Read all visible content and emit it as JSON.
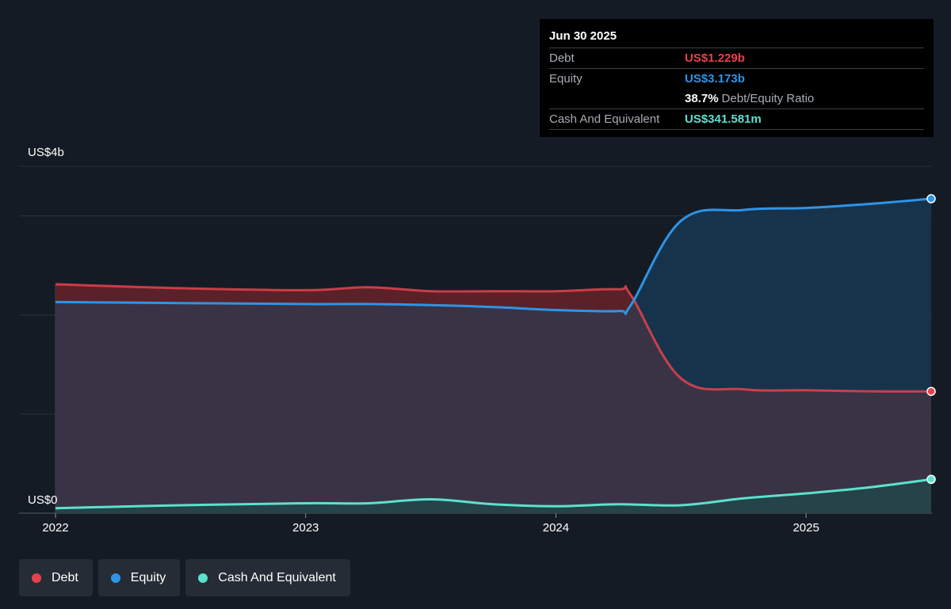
{
  "tooltip": {
    "date": "Jun 30 2025",
    "rows": [
      {
        "label": "Debt",
        "value": "US$1.229b",
        "color": "#e5424d"
      },
      {
        "label": "Equity",
        "value": "US$3.173b",
        "color": "#2e94e6"
      }
    ],
    "ratio_pct": "38.7%",
    "ratio_label": "Debt/Equity Ratio",
    "cash": {
      "label": "Cash And Equivalent",
      "value": "US$341.581m",
      "color": "#5ce1cf"
    }
  },
  "legend": [
    {
      "label": "Debt",
      "color": "#e5424d"
    },
    {
      "label": "Equity",
      "color": "#2e94e6"
    },
    {
      "label": "Cash And Equivalent",
      "color": "#5ce1cf"
    }
  ],
  "chart_data": {
    "type": "area",
    "y_top_label": "US$4b",
    "y_bottom_label": "US$0",
    "ylim": [
      0,
      3.5
    ],
    "xlim": [
      2022.0,
      2025.5
    ],
    "x_ticks": [
      {
        "value": 2022.0,
        "label": "2022"
      },
      {
        "value": 2023.0,
        "label": "2023"
      },
      {
        "value": 2024.0,
        "label": "2024"
      },
      {
        "value": 2025.0,
        "label": "2025"
      }
    ],
    "grid": true,
    "series": [
      {
        "name": "Debt",
        "color": "#e5424d",
        "x": [
          2022.0,
          2022.5,
          2023.0,
          2023.25,
          2023.5,
          2023.75,
          2024.0,
          2024.25,
          2024.3,
          2024.5,
          2024.75,
          2025.0,
          2025.25,
          2025.5
        ],
        "values": [
          2.31,
          2.27,
          2.25,
          2.28,
          2.24,
          2.24,
          2.24,
          2.26,
          2.2,
          1.36,
          1.25,
          1.24,
          1.23,
          1.229
        ]
      },
      {
        "name": "Equity",
        "color": "#2e94e6",
        "x": [
          2022.0,
          2022.5,
          2023.0,
          2023.25,
          2023.5,
          2023.75,
          2024.0,
          2024.25,
          2024.3,
          2024.5,
          2024.75,
          2025.0,
          2025.25,
          2025.5
        ],
        "values": [
          2.13,
          2.12,
          2.11,
          2.11,
          2.1,
          2.08,
          2.05,
          2.04,
          2.1,
          2.95,
          3.06,
          3.08,
          3.12,
          3.173
        ]
      },
      {
        "name": "Cash And Equivalent",
        "color": "#5ce1cf",
        "x": [
          2022.0,
          2022.5,
          2023.0,
          2023.25,
          2023.5,
          2023.75,
          2024.0,
          2024.25,
          2024.5,
          2024.75,
          2025.0,
          2025.25,
          2025.5
        ],
        "values": [
          0.05,
          0.08,
          0.1,
          0.1,
          0.14,
          0.09,
          0.07,
          0.09,
          0.08,
          0.15,
          0.2,
          0.26,
          0.3416
        ]
      }
    ]
  }
}
